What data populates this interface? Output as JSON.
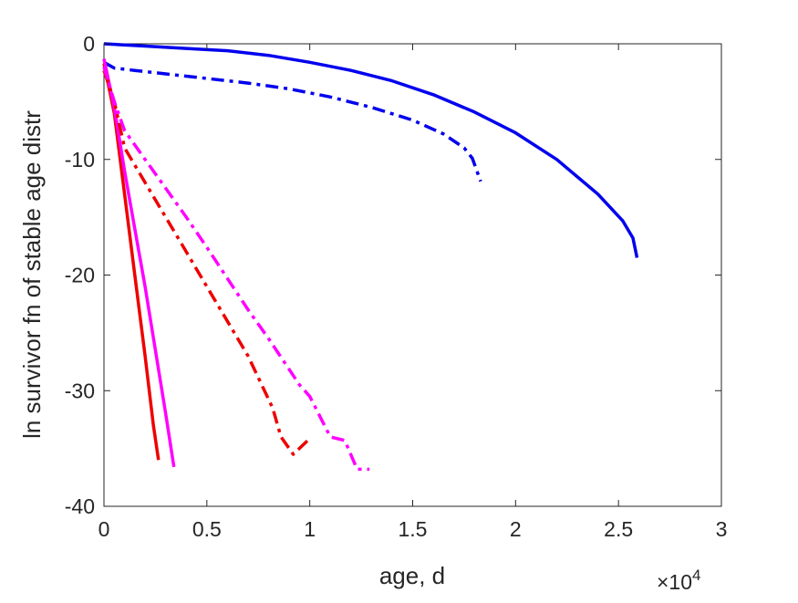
{
  "chart_data": {
    "type": "line",
    "title": "",
    "xlabel": "age, d",
    "ylabel": "ln survivor fn of stable age distr",
    "x_exponent_label": "×10",
    "x_exponent_power": "4",
    "xlim": [
      0,
      30000
    ],
    "ylim": [
      -40,
      0
    ],
    "x_ticks": [
      0,
      5000,
      10000,
      15000,
      20000,
      25000,
      30000
    ],
    "x_tick_labels": [
      "0",
      "0.5",
      "1",
      "1.5",
      "2",
      "2.5",
      "3"
    ],
    "y_ticks": [
      0,
      -10,
      -20,
      -30,
      -40
    ],
    "y_tick_labels": [
      "0",
      "-10",
      "-20",
      "-30",
      "-40"
    ],
    "grid": false,
    "legend": false,
    "series": [
      {
        "color": "#0000ee",
        "dash": "solid",
        "points": [
          [
            0,
            0
          ],
          [
            2000,
            -0.2
          ],
          [
            4000,
            -0.4
          ],
          [
            6000,
            -0.6
          ],
          [
            8000,
            -1.0
          ],
          [
            10000,
            -1.6
          ],
          [
            12000,
            -2.3
          ],
          [
            14000,
            -3.2
          ],
          [
            16000,
            -4.4
          ],
          [
            18000,
            -5.9
          ],
          [
            20000,
            -7.7
          ],
          [
            22000,
            -10.0
          ],
          [
            24000,
            -13.0
          ],
          [
            25200,
            -15.3
          ],
          [
            25700,
            -16.8
          ],
          [
            25900,
            -18.5
          ]
        ]
      },
      {
        "color": "#0000ee",
        "dash": "dashdot",
        "points": [
          [
            0,
            -1.6
          ],
          [
            500,
            -2.1
          ],
          [
            1500,
            -2.3
          ],
          [
            3000,
            -2.6
          ],
          [
            5000,
            -3.0
          ],
          [
            7000,
            -3.4
          ],
          [
            9000,
            -3.9
          ],
          [
            11000,
            -4.6
          ],
          [
            13000,
            -5.5
          ],
          [
            15000,
            -6.6
          ],
          [
            16500,
            -7.8
          ],
          [
            17500,
            -9.0
          ],
          [
            17900,
            -9.9
          ],
          [
            18100,
            -10.9
          ],
          [
            18300,
            -11.9
          ]
        ]
      },
      {
        "color": "#ee0000",
        "dash": "solid",
        "points": [
          [
            0,
            -1.7
          ],
          [
            500,
            -6.0
          ],
          [
            1000,
            -13.0
          ],
          [
            1500,
            -20.0
          ],
          [
            2000,
            -27.0
          ],
          [
            2400,
            -33.0
          ],
          [
            2650,
            -36.0
          ]
        ]
      },
      {
        "color": "#ff00ff",
        "dash": "solid",
        "points": [
          [
            0,
            -1.3
          ],
          [
            500,
            -5.5
          ],
          [
            1000,
            -11.0
          ],
          [
            1500,
            -16.0
          ],
          [
            2000,
            -21.0
          ],
          [
            2500,
            -26.5
          ],
          [
            3000,
            -32.0
          ],
          [
            3400,
            -36.6
          ]
        ]
      },
      {
        "color": "#ee0000",
        "dash": "dashdot",
        "points": [
          [
            0,
            -2.3
          ],
          [
            500,
            -5.0
          ],
          [
            1000,
            -9.0
          ],
          [
            2000,
            -12.0
          ],
          [
            3000,
            -15.0
          ],
          [
            4000,
            -18.0
          ],
          [
            5000,
            -21.0
          ],
          [
            6000,
            -24.0
          ],
          [
            7000,
            -27.0
          ],
          [
            7800,
            -30.0
          ],
          [
            8200,
            -31.5
          ],
          [
            8600,
            -34.0
          ],
          [
            9200,
            -35.5
          ],
          [
            9900,
            -34.3
          ]
        ]
      },
      {
        "color": "#ff00ff",
        "dash": "dashdot",
        "points": [
          [
            0,
            -2.0
          ],
          [
            500,
            -5.0
          ],
          [
            1000,
            -7.5
          ],
          [
            2000,
            -10.0
          ],
          [
            3000,
            -12.5
          ],
          [
            4000,
            -15.0
          ],
          [
            5000,
            -17.6
          ],
          [
            6000,
            -20.3
          ],
          [
            7000,
            -23.0
          ],
          [
            8000,
            -25.5
          ],
          [
            9500,
            -29.5
          ],
          [
            10000,
            -30.5
          ],
          [
            11000,
            -34.0
          ],
          [
            11700,
            -34.3
          ],
          [
            12300,
            -36.8
          ],
          [
            12900,
            -36.8
          ]
        ]
      }
    ]
  }
}
